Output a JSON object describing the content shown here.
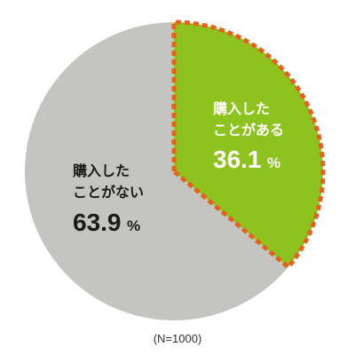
{
  "chart_data": {
    "type": "pie",
    "slices": [
      {
        "label_line1": "購入した",
        "label_line2": "ことがある",
        "value": 36.1,
        "value_text": "36.1",
        "percent_sign": "%",
        "color": "#8dc21f",
        "border_color": "#e8601c",
        "highlighted": true
      },
      {
        "label_line1": "購入した",
        "label_line2": "ことがない",
        "value": 63.9,
        "value_text": "63.9",
        "percent_sign": "%",
        "color": "#c4c4c0",
        "highlighted": false
      }
    ],
    "note": "(N=1000)",
    "start_angle": "12 o'clock",
    "direction": "clockwise"
  }
}
